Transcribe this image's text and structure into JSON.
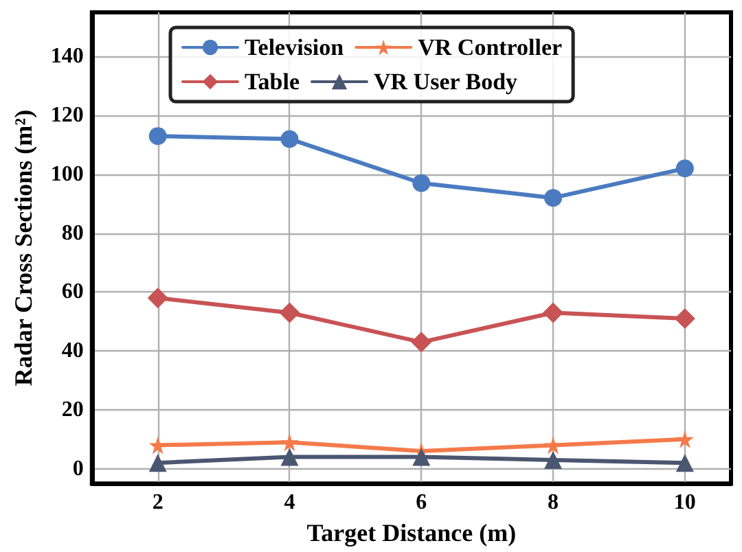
{
  "chart_data": {
    "type": "line",
    "xlabel": "Target Distance (m)",
    "ylabel": "Radar Cross Sections (m²)",
    "x": [
      2,
      4,
      6,
      8,
      10
    ],
    "xlim": [
      1,
      10.7
    ],
    "xticks": [
      2,
      4,
      6,
      8,
      10
    ],
    "ylim": [
      -5,
      155
    ],
    "yticks": [
      0,
      20,
      40,
      60,
      80,
      100,
      120,
      140
    ],
    "grid": true,
    "legend": "top",
    "line_style": "solid",
    "series": [
      {
        "name": "Television",
        "color": "#4a7bc0",
        "marker": "circle",
        "values": [
          113,
          112,
          97,
          92,
          102
        ]
      },
      {
        "name": "Table",
        "color": "#c85355",
        "marker": "diamond",
        "values": [
          58,
          53,
          43,
          53,
          51
        ]
      },
      {
        "name": "VR Controller",
        "color": "#f47a4a",
        "marker": "star",
        "values": [
          8,
          9,
          6,
          8,
          10
        ]
      },
      {
        "name": "VR User Body",
        "color": "#4b5670",
        "marker": "triangle",
        "values": [
          2,
          4,
          4,
          3,
          2
        ]
      }
    ]
  }
}
